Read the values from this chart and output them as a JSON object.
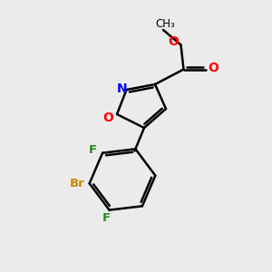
{
  "bg_color": "#ebebeb",
  "black": "#000000",
  "red": "#FF0000",
  "blue": "#0000FF",
  "br_color": "#cc8800",
  "f_color": "#228B22",
  "bond_lw": 1.8,
  "font_size": 10,
  "xlim": [
    0,
    10
  ],
  "ylim": [
    0,
    10
  ]
}
